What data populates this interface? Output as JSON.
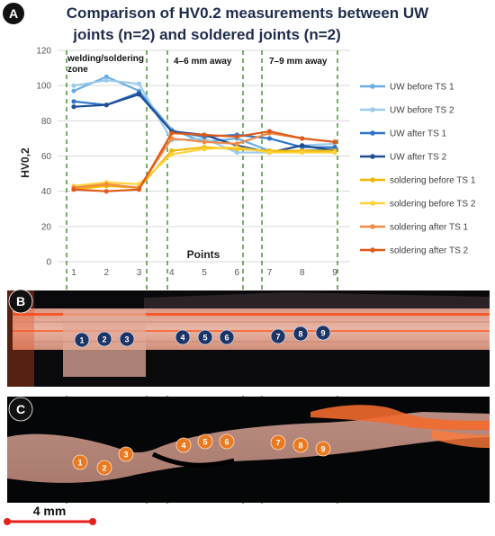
{
  "panels": {
    "a": "A",
    "b": "B",
    "c": "C"
  },
  "chart_data": {
    "type": "line",
    "title_line1": "Comparison of HV0.2 measurements between UW",
    "title_line2": "joints (n=2) and soldered joints (n=2)",
    "xlabel": "Points",
    "ylabel": "HV0,2",
    "x": [
      1,
      2,
      3,
      4,
      5,
      6,
      7,
      8,
      9
    ],
    "ylim": [
      0,
      120
    ],
    "yticks": [
      0,
      20,
      40,
      60,
      80,
      100,
      120
    ],
    "grid": true,
    "legend_position": "right",
    "zones": [
      {
        "label_line1": "welding/soldering",
        "label_line2": "zone"
      },
      {
        "label_line1": "4–6 mm away",
        "label_line2": ""
      },
      {
        "label_line1": "7–9 mm away",
        "label_line2": ""
      }
    ],
    "series": [
      {
        "name": "UW before TS 1",
        "color": "#6aaee0",
        "values": [
          97,
          105,
          97,
          75,
          68,
          70,
          63,
          63,
          64
        ]
      },
      {
        "name": "UW before TS 2",
        "color": "#9ccbee",
        "values": [
          100,
          103,
          101,
          69,
          70,
          62,
          62,
          66,
          67
        ]
      },
      {
        "name": "UW after TS 1",
        "color": "#2e75c9",
        "values": [
          91,
          89,
          96,
          74,
          71,
          72,
          70,
          65,
          65
        ]
      },
      {
        "name": "UW after TS 2",
        "color": "#1f4e96",
        "values": [
          88,
          89,
          95,
          74,
          72,
          66,
          62,
          66,
          63
        ]
      },
      {
        "name": "soldering before TS 1",
        "color": "#f2b705",
        "values": [
          41,
          43,
          42,
          63,
          65,
          64,
          63,
          63,
          63
        ]
      },
      {
        "name": "soldering before TS 2",
        "color": "#ffd23a",
        "values": [
          43,
          45,
          44,
          61,
          64,
          65,
          62,
          62,
          62
        ]
      },
      {
        "name": "soldering after TS 1",
        "color": "#f08b45",
        "values": [
          42,
          44,
          42,
          70,
          68,
          67,
          73,
          70,
          68
        ]
      },
      {
        "name": "soldering after TS 2",
        "color": "#df5a18",
        "values": [
          41,
          40,
          41,
          73,
          72,
          71,
          74,
          70,
          68
        ]
      }
    ]
  },
  "micro_b": {
    "points": [
      "1",
      "2",
      "3",
      "4",
      "5",
      "6",
      "7",
      "8",
      "9"
    ]
  },
  "micro_c": {
    "points": [
      "1",
      "2",
      "3",
      "4",
      "5",
      "6",
      "7",
      "8",
      "9"
    ]
  },
  "scale_bar": {
    "label": "4 mm"
  }
}
